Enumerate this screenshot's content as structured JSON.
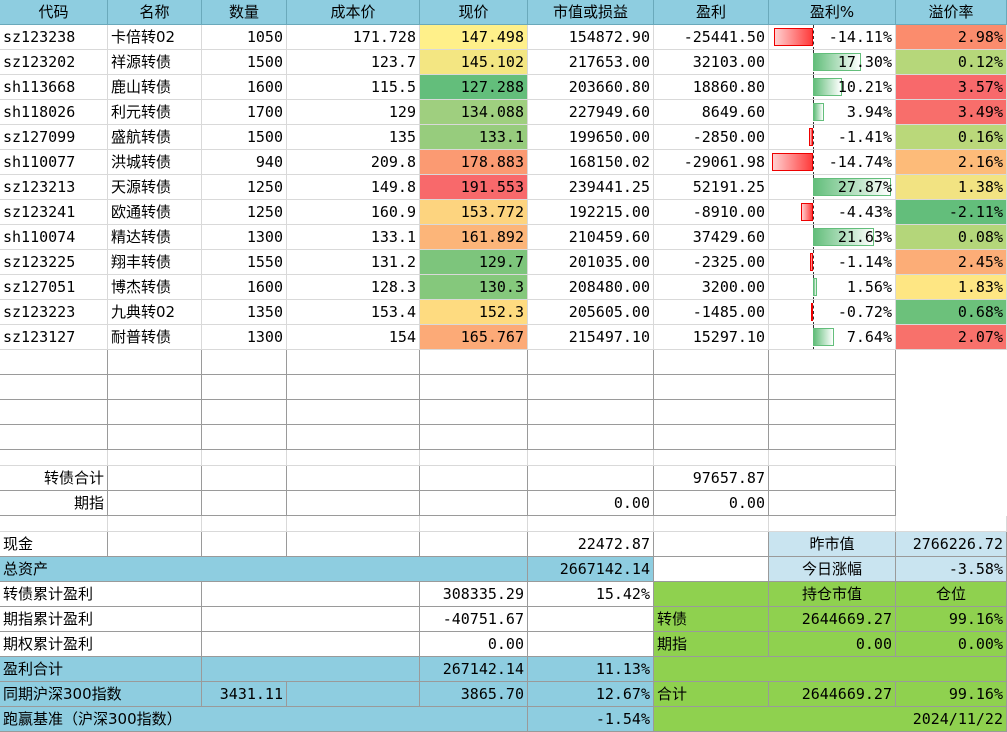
{
  "header": {
    "code": "代码",
    "name": "名称",
    "qty": "数量",
    "cost": "成本价",
    "price": "现价",
    "value": "市值或损益",
    "profit": "盈利",
    "profit_pct": "盈利%",
    "premium": "溢价率"
  },
  "rows": [
    {
      "code": "sz123238",
      "name": "卡倍转02",
      "qty": "1050",
      "cost": "171.728",
      "price": "147.498",
      "price_color": "#fff08a",
      "value": "154872.90",
      "profit": "-25441.50",
      "pct": "-14.11%",
      "pct_num": -14.11,
      "premium": "2.98%",
      "premium_color": "#fb8c6d"
    },
    {
      "code": "sz123202",
      "name": "祥源转债",
      "qty": "1500",
      "cost": "123.7",
      "price": "145.102",
      "price_color": "#f3e682",
      "value": "217653.00",
      "profit": "32103.00",
      "pct": "17.30%",
      "pct_num": 17.3,
      "premium": "0.12%",
      "premium_color": "#b6d77a"
    },
    {
      "code": "sh113668",
      "name": "鹿山转债",
      "qty": "1600",
      "cost": "115.5",
      "price": "127.288",
      "price_color": "#63be7b",
      "value": "203660.80",
      "profit": "18860.80",
      "pct": "10.21%",
      "pct_num": 10.21,
      "premium": "3.57%",
      "premium_color": "#f8696b"
    },
    {
      "code": "sh118026",
      "name": "利元转债",
      "qty": "1700",
      "cost": "129",
      "price": "134.088",
      "price_color": "#9fcf7f",
      "value": "227949.60",
      "profit": "8649.60",
      "pct": "3.94%",
      "pct_num": 3.94,
      "premium": "3.49%",
      "premium_color": "#f86e6b"
    },
    {
      "code": "sz127099",
      "name": "盛航转债",
      "qty": "1500",
      "cost": "135",
      "price": "133.1",
      "price_color": "#97cc7d",
      "value": "199650.00",
      "profit": "-2850.00",
      "pct": "-1.41%",
      "pct_num": -1.41,
      "premium": "0.16%",
      "premium_color": "#bad87a"
    },
    {
      "code": "sh110077",
      "name": "洪城转债",
      "qty": "940",
      "cost": "209.8",
      "price": "178.883",
      "price_color": "#fb9a72",
      "value": "168150.02",
      "profit": "-29061.98",
      "pct": "-14.74%",
      "pct_num": -14.74,
      "premium": "2.16%",
      "premium_color": "#fdbb79"
    },
    {
      "code": "sz123213",
      "name": "天源转债",
      "qty": "1250",
      "cost": "149.8",
      "price": "191.553",
      "price_color": "#f8696b",
      "value": "239441.25",
      "profit": "52191.25",
      "pct": "27.87%",
      "pct_num": 27.87,
      "premium": "1.38%",
      "premium_color": "#f2e382"
    },
    {
      "code": "sz123241",
      "name": "欧通转债",
      "qty": "1250",
      "cost": "160.9",
      "price": "153.772",
      "price_color": "#fdd47f",
      "value": "192215.00",
      "profit": "-8910.00",
      "pct": "-4.43%",
      "pct_num": -4.43,
      "premium": "-2.11%",
      "premium_color": "#63be7b"
    },
    {
      "code": "sh110074",
      "name": "精达转债",
      "qty": "1300",
      "cost": "133.1",
      "price": "161.892",
      "price_color": "#fcb579",
      "value": "210459.60",
      "profit": "37429.60",
      "pct": "21.63%",
      "pct_num": 21.63,
      "premium": "0.08%",
      "premium_color": "#b4d67a"
    },
    {
      "code": "sz123225",
      "name": "翔丰转债",
      "qty": "1550",
      "cost": "131.2",
      "price": "129.7",
      "price_color": "#7dc57c",
      "value": "201035.00",
      "profit": "-2325.00",
      "pct": "-1.14%",
      "pct_num": -1.14,
      "premium": "2.45%",
      "premium_color": "#fcad77"
    },
    {
      "code": "sz127051",
      "name": "博杰转债",
      "qty": "1600",
      "cost": "128.3",
      "price": "130.3",
      "price_color": "#85c87c",
      "value": "208480.00",
      "profit": "3200.00",
      "pct": "1.56%",
      "pct_num": 1.56,
      "premium": "1.83%",
      "premium_color": "#fee683"
    },
    {
      "code": "sz123223",
      "name": "九典转02",
      "qty": "1350",
      "cost": "153.4",
      "price": "152.3",
      "price_color": "#fedb80",
      "value": "205605.00",
      "profit": "-1485.00",
      "pct": "-0.72%",
      "pct_num": -0.72,
      "premium": "0.68%",
      "premium_color": "#6cc17b"
    },
    {
      "code": "sz123127",
      "name": "耐普转债",
      "qty": "1300",
      "cost": "154",
      "price": "165.767",
      "price_color": "#fcaa77",
      "value": "215497.10",
      "profit": "15297.10",
      "pct": "7.64%",
      "pct_num": 7.64,
      "premium": "2.07%",
      "premium_color": "#f8716b"
    }
  ],
  "totals": {
    "bond_label": "转债合计",
    "bond_profit": "97657.87",
    "futures_label": "期指",
    "futures_value": "0.00",
    "futures_profit": "0.00"
  },
  "summary": {
    "cash_label": "现金",
    "cash": "22472.87",
    "assets_label": "总资产",
    "assets": "2667142.14",
    "bond_cum_label": "转债累计盈利",
    "bond_cum": "308335.29",
    "bond_cum_pct": "15.42%",
    "fut_cum_label": "期指累计盈利",
    "fut_cum": "-40751.67",
    "opt_cum_label": "期权累计盈利",
    "opt_cum": "0.00",
    "profit_total_label": "盈利合计",
    "profit_total": "267142.14",
    "profit_total_pct": "11.13%",
    "index_label": "同期沪深300指数",
    "index_start": "3431.11",
    "index_now": "3865.70",
    "index_pct": "12.67%",
    "beat_label": "跑赢基准（沪深300指数）",
    "beat_pct": "-1.54%"
  },
  "right": {
    "yesterday_label": "昨市值",
    "yesterday": "2766226.72",
    "today_change_label": "今日涨幅",
    "today_change": "-3.58%",
    "position_value_label": "持仓市值",
    "position_label": "仓位",
    "bond_label": "转债",
    "bond_value": "2644669.27",
    "bond_pos": "99.16%",
    "fut_label": "期指",
    "fut_value": "0.00",
    "fut_pos": "0.00%",
    "total_label": "合计",
    "total_value": "2644669.27",
    "total_pos": "99.16%",
    "date": "2024/11/22"
  }
}
